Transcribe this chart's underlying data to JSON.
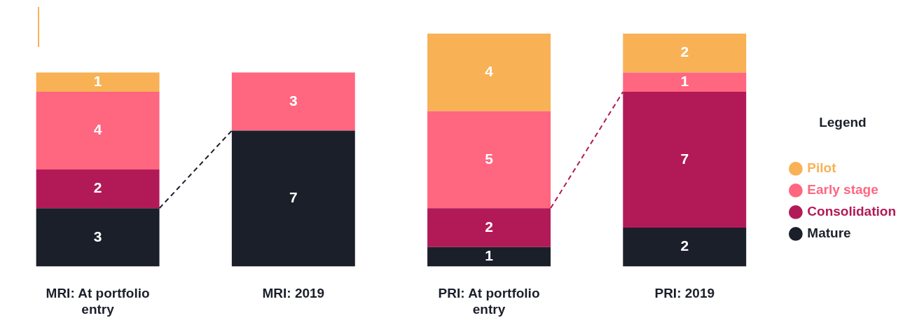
{
  "chart_data": {
    "type": "bar",
    "stacked": true,
    "categories": [
      "MRI: At portfolio entry",
      "MRI: 2019",
      "PRI: At portfolio entry",
      "PRI: 2019"
    ],
    "series": [
      {
        "name": "Mature",
        "color": "#1b1f2a",
        "values": [
          3,
          7,
          1,
          2
        ]
      },
      {
        "name": "Consolidation",
        "color": "#b21a57",
        "values": [
          2,
          null,
          2,
          7
        ]
      },
      {
        "name": "Early stage",
        "color": "#ff6680",
        "values": [
          4,
          3,
          5,
          1
        ]
      },
      {
        "name": "Pilot",
        "color": "#f8b155",
        "values": [
          1,
          null,
          4,
          2
        ]
      }
    ],
    "ylim": [
      0,
      12
    ],
    "tick_labels": "x",
    "grid": false,
    "legend": "right",
    "legend_title": "Legend",
    "data_labels": true
  }
}
